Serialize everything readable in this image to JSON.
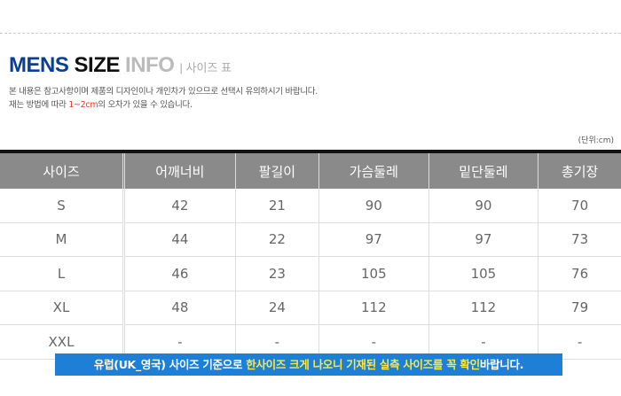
{
  "title": {
    "mens": "MENS",
    "size": "SIZE",
    "info": "INFO",
    "sub": "| 사이즈 표"
  },
  "notes": {
    "line1": "본 내용은 참고사항이며 제품의 디자인이나 개인차가 있으므로 선택시 유의하시기 바랍니다.",
    "line2_pre": "재는 방법에 따라 ",
    "line2_red": "1~2cm",
    "line2_post": "의 오차가 있을 수 있습니다."
  },
  "unit": "(단위:cm)",
  "table": {
    "headers": [
      "사이즈",
      "어깨너비",
      "팔길이",
      "가슴둘레",
      "밑단둘레",
      "총기장"
    ],
    "rows": [
      [
        "S",
        "42",
        "21",
        "90",
        "90",
        "70"
      ],
      [
        "M",
        "44",
        "22",
        "97",
        "97",
        "73"
      ],
      [
        "L",
        "46",
        "23",
        "105",
        "105",
        "76"
      ],
      [
        "XL",
        "48",
        "24",
        "112",
        "112",
        "79"
      ],
      [
        "XXL",
        "-",
        "-",
        "-",
        "-",
        "-"
      ]
    ]
  },
  "banner": {
    "pre": "유럽(UK_영국) 사이즈 기준으로 ",
    "highlight": "한사이즈 크게 나오니 기재된 실측 사이즈를 꼭 확인",
    "post": "바랍니다."
  },
  "colors": {
    "navy": "#0b3f94",
    "header_gray": "#8a8a8a",
    "banner_blue": "#1e7fd6",
    "highlight_yellow": "#ffe83a",
    "red": "#e8371e"
  }
}
